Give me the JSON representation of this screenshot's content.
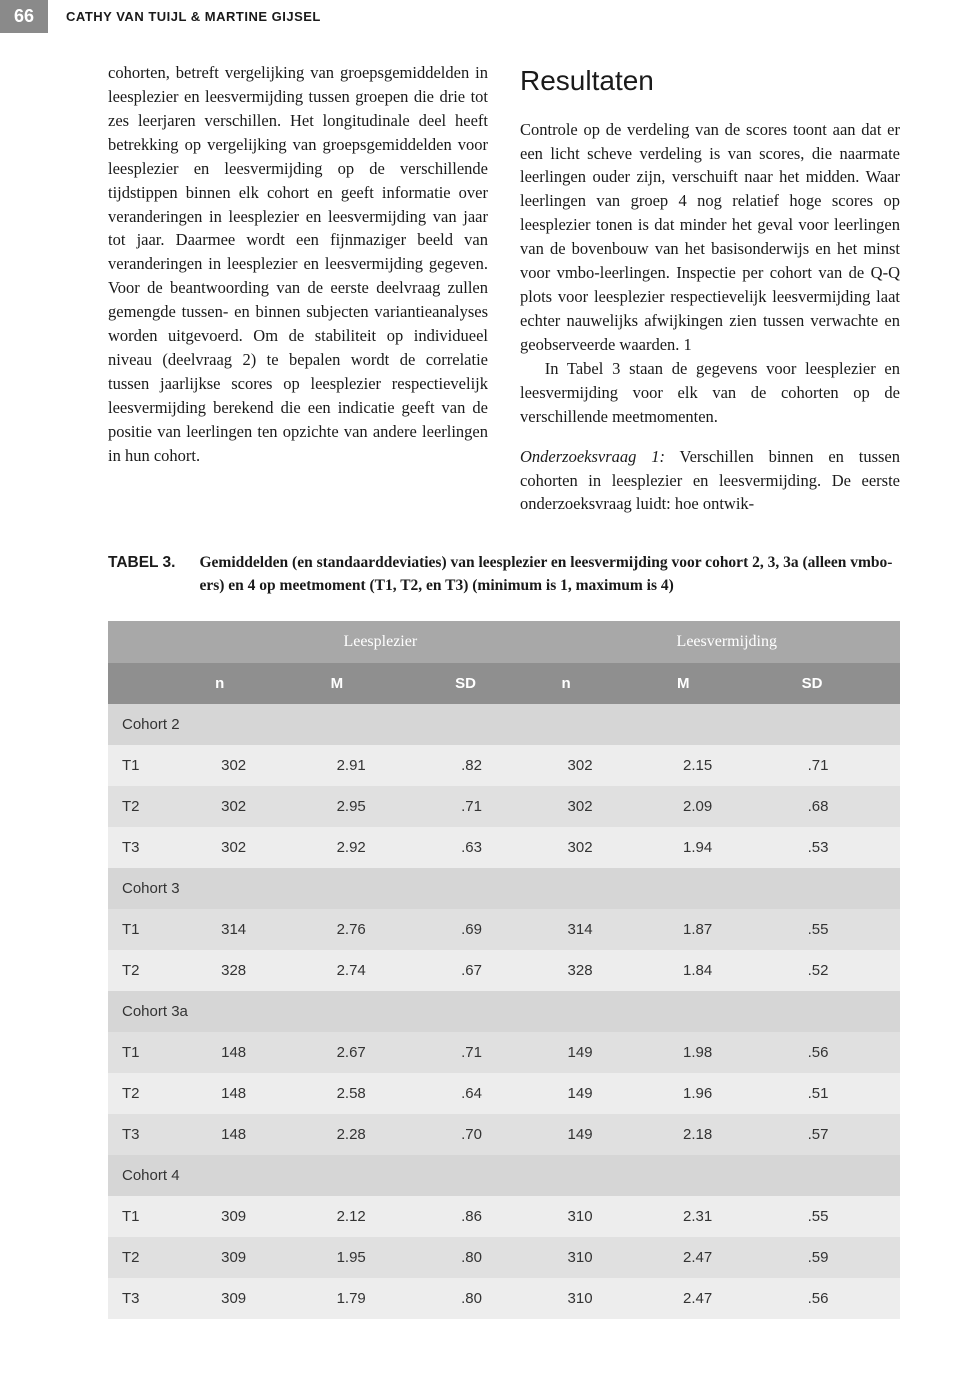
{
  "header": {
    "page_number": "66",
    "authors": "CATHY VAN TUIJL & MARTINE GIJSEL"
  },
  "left_column": {
    "paragraph": "cohorten, betreft vergelijking van groepsgemiddelden in leesplezier en leesvermijding tussen groepen die drie tot zes leerjaren verschillen. Het longitudinale deel heeft betrekking op vergelijking van groepsgemiddelden voor leesplezier en leesvermijding op de verschillende tijdstippen binnen elk cohort en geeft informatie over veranderingen in leesplezier en leesvermijding van jaar tot jaar. Daarmee wordt een fijnmaziger beeld van veranderingen in leesplezier en leesvermijding gegeven. Voor de beantwoording van de eerste deelvraag zullen gemengde tussen- en binnen subjecten variantieanalyses worden uitgevoerd. Om de stabiliteit op individueel niveau (deelvraag 2) te bepalen wordt de correlatie tussen jaarlijkse scores op leesplezier respectievelijk leesvermijding berekend die een indicatie geeft van de positie van leerlingen ten opzichte van andere leerlingen in hun cohort."
  },
  "right_column": {
    "heading": "Resultaten",
    "para1": "Controle op de verdeling van de scores toont aan dat er een licht scheve verdeling is van scores, die naarmate leerlingen ouder zijn, verschuift naar het midden. Waar leerlingen van groep 4 nog relatief hoge scores op leesplezier tonen is dat minder het geval voor leerlingen van de bovenbouw van het basisonderwijs en het minst voor vmbo-leerlingen. Inspectie per cohort van de Q-Q plots voor leesplezier respectievelijk leesvermijding laat echter nauwelijks afwijkingen zien tussen verwachte en geobserveerde waarden. 1",
    "para2": "In Tabel 3 staan de gegevens voor leesplezier en leesvermijding voor elk van de cohorten op de verschillende meetmomenten.",
    "q_label": "Onderzoeksvraag 1:",
    "q_text": " Verschillen binnen en tussen cohorten in leesplezier en leesvermijding. De eerste onderzoeksvraag luidt: hoe ontwik-"
  },
  "table": {
    "label": "TABEL 3.",
    "caption": "Gemiddelden (en standaarddeviaties) van leesplezier en leesvermijding voor cohort 2, 3, 3a (alleen vmbo-ers) en 4 op meetmoment (T1, T2, en T3) (minimum is 1, maximum is 4)",
    "group_headers": [
      "",
      "Leesplezier",
      "Leesvermijding"
    ],
    "col_headers": [
      "",
      "n",
      "M",
      "SD",
      "n",
      "M",
      "SD"
    ],
    "sections": [
      {
        "name": "Cohort 2",
        "rows": [
          {
            "label": "T1",
            "cells": [
              "302",
              "2.91",
              ".82",
              "302",
              "2.15",
              ".71"
            ]
          },
          {
            "label": "T2",
            "cells": [
              "302",
              "2.95",
              ".71",
              "302",
              "2.09",
              ".68"
            ]
          },
          {
            "label": "T3",
            "cells": [
              "302",
              "2.92",
              ".63",
              "302",
              "1.94",
              ".53"
            ]
          }
        ]
      },
      {
        "name": "Cohort 3",
        "rows": [
          {
            "label": "T1",
            "cells": [
              "314",
              "2.76",
              ".69",
              "314",
              "1.87",
              ".55"
            ]
          },
          {
            "label": "T2",
            "cells": [
              "328",
              "2.74",
              ".67",
              "328",
              "1.84",
              ".52"
            ]
          }
        ]
      },
      {
        "name": "Cohort 3a",
        "rows": [
          {
            "label": "T1",
            "cells": [
              "148",
              "2.67",
              ".71",
              "149",
              "1.98",
              ".56"
            ]
          },
          {
            "label": "T2",
            "cells": [
              "148",
              "2.58",
              ".64",
              "149",
              "1.96",
              ".51"
            ]
          },
          {
            "label": "T3",
            "cells": [
              "148",
              "2.28",
              ".70",
              "149",
              "2.18",
              ".57"
            ]
          }
        ]
      },
      {
        "name": "Cohort 4",
        "rows": [
          {
            "label": "T1",
            "cells": [
              "309",
              "2.12",
              ".86",
              "310",
              "2.31",
              ".55"
            ]
          },
          {
            "label": "T2",
            "cells": [
              "309",
              "1.95",
              ".80",
              "310",
              "2.47",
              ".59"
            ]
          },
          {
            "label": "T3",
            "cells": [
              "309",
              "1.79",
              ".80",
              "310",
              "2.47",
              ".56"
            ]
          }
        ]
      }
    ],
    "colors": {
      "group_header_bg": "#a8a8a8",
      "col_header_bg": "#8f8f8f",
      "header_text": "#ffffff",
      "section_row_bg": "#d6d6d6",
      "row_even_bg": "#ededed",
      "row_odd_bg": "#e0e0e0",
      "cell_text": "#333333"
    }
  }
}
